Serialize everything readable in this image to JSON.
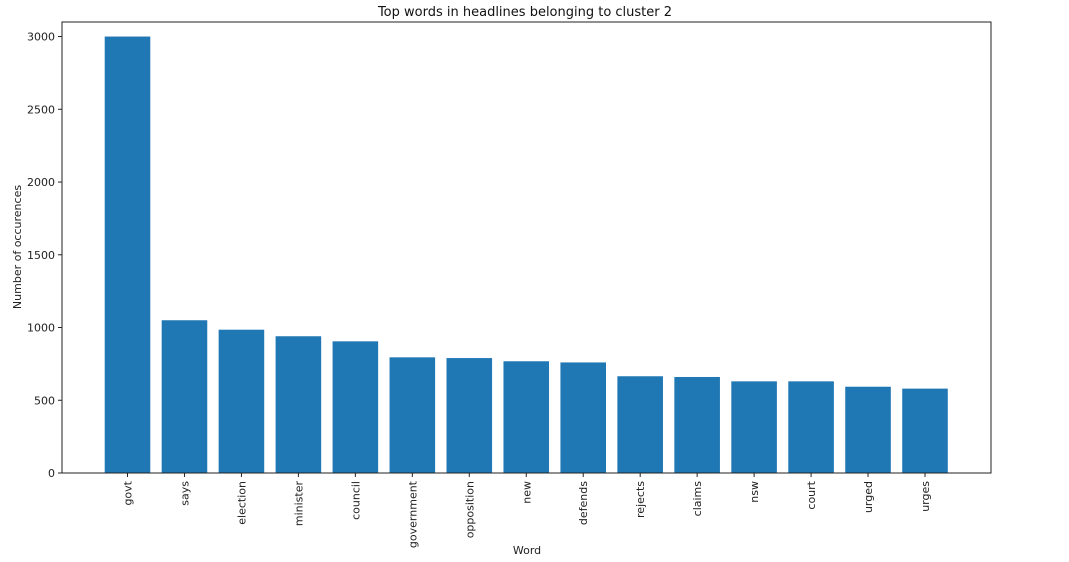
{
  "chart_data": {
    "type": "bar",
    "title": "Top words in headlines belonging to cluster 2",
    "xlabel": "Word",
    "ylabel": "Number of occurences",
    "categories": [
      "govt",
      "says",
      "election",
      "minister",
      "council",
      "government",
      "opposition",
      "new",
      "defends",
      "rejects",
      "claims",
      "nsw",
      "court",
      "urged",
      "urges"
    ],
    "values": [
      3000,
      1050,
      985,
      940,
      905,
      795,
      790,
      768,
      760,
      665,
      660,
      630,
      630,
      593,
      580
    ],
    "ylim": [
      0,
      3100
    ],
    "yticks": [
      0,
      500,
      1000,
      1500,
      2000,
      2500,
      3000
    ],
    "xtick_rotation": 90,
    "grid": false,
    "legend": "none",
    "bar_color": "#1f77b4"
  }
}
